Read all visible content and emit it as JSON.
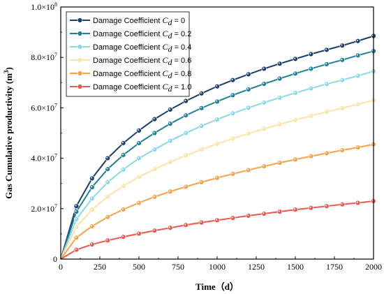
{
  "chart_data": {
    "type": "line",
    "title": "",
    "xlabel": "Time（d）",
    "ylabel_main": "Gas Cumulative productivity (m",
    "ylabel_sup": "3",
    "ylabel_close": ")",
    "xlim": [
      0,
      2000
    ],
    "ylim": [
      0,
      100000000
    ],
    "x_ticks": [
      0,
      250,
      500,
      750,
      1000,
      1250,
      1500,
      1750,
      2000
    ],
    "x_tick_labels": [
      "0",
      "250",
      "500",
      "750",
      "1000",
      "1250",
      "1500",
      "1750",
      "2000"
    ],
    "y_ticks": [
      0,
      20000000,
      40000000,
      60000000,
      80000000,
      100000000
    ],
    "y_tick_labels": [
      {
        "base": "0",
        "exp": ""
      },
      {
        "base": "2.0×10",
        "exp": "7"
      },
      {
        "base": "4.0×10",
        "exp": "7"
      },
      {
        "base": "6.0×10",
        "exp": "7"
      },
      {
        "base": "8.0×10",
        "exp": "7"
      },
      {
        "base": "1.0×10",
        "exp": "8"
      }
    ],
    "grid": false,
    "legend_position": "top-left",
    "x": [
      0,
      100,
      200,
      300,
      400,
      500,
      600,
      700,
      800,
      900,
      1000,
      1100,
      1200,
      1300,
      1400,
      1500,
      1600,
      1700,
      1800,
      1900,
      2000
    ],
    "series": [
      {
        "legend_text": "Damage Coefficient",
        "var": "C",
        "sub": "d",
        "value_text": " = 0",
        "color": "#1a3f6b",
        "values": [
          0,
          21000000,
          32000000,
          40000000,
          46000000,
          51000000,
          55500000,
          59300000,
          62700000,
          65700000,
          68500000,
          71000000,
          73300000,
          75500000,
          77500000,
          79400000,
          81300000,
          83000000,
          84700000,
          86500000,
          88500000
        ]
      },
      {
        "legend_text": "Damage Coefficient",
        "var": "C",
        "sub": "d",
        "value_text": " = 0.2",
        "color": "#1f7f99",
        "values": [
          0,
          18800000,
          28500000,
          35700000,
          41300000,
          46000000,
          50000000,
          53700000,
          57000000,
          59900000,
          62500000,
          65000000,
          67300000,
          69500000,
          71600000,
          73600000,
          75500000,
          77300000,
          79000000,
          80800000,
          82500000
        ]
      },
      {
        "legend_text": "Damage Coefficient",
        "var": "C",
        "sub": "d",
        "value_text": " = 0.4",
        "color": "#88d8e6",
        "values": [
          0,
          15800000,
          24000000,
          30500000,
          35500000,
          40000000,
          43500000,
          46900000,
          50000000,
          52800000,
          55400000,
          57800000,
          60000000,
          62100000,
          64000000,
          65900000,
          67700000,
          69400000,
          71000000,
          72700000,
          74500000
        ]
      },
      {
        "legend_text": "Damage Coefficient",
        "var": "C",
        "sub": "d",
        "value_text": " = 0.6",
        "color": "#fbe2a8",
        "values": [
          0,
          12800000,
          19600000,
          24800000,
          29000000,
          32600000,
          35700000,
          38500000,
          41100000,
          43500000,
          45700000,
          47800000,
          49800000,
          51700000,
          53500000,
          55200000,
          56800000,
          58400000,
          59900000,
          61400000,
          63000000
        ]
      },
      {
        "legend_text": "Damage Coefficient",
        "var": "C",
        "sub": "d",
        "value_text": " = 0.8",
        "color": "#f5a24a",
        "values": [
          0,
          8500000,
          13000000,
          16700000,
          19700000,
          22300000,
          24700000,
          26800000,
          28700000,
          30500000,
          32200000,
          33800000,
          35300000,
          36800000,
          38200000,
          39500000,
          40800000,
          42000000,
          43200000,
          44300000,
          45500000
        ]
      },
      {
        "legend_text": "Damage Coefficient",
        "var": "C",
        "sub": "d",
        "value_text": " = 1.0",
        "color": "#e85a4f",
        "values": [
          0,
          3700000,
          5800000,
          7400000,
          8800000,
          10100000,
          11300000,
          12400000,
          13500000,
          14500000,
          15400000,
          16300000,
          17200000,
          18000000,
          18800000,
          19600000,
          20300000,
          21000000,
          21700000,
          22300000,
          23000000
        ]
      }
    ]
  }
}
